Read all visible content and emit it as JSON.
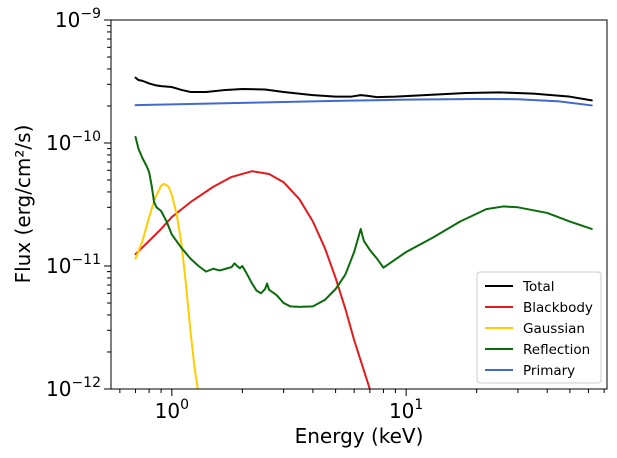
{
  "chart_data": {
    "type": "line",
    "xlabel": "Energy (keV)",
    "ylabel": "Flux (erg/cm²/s)",
    "xscale": "log",
    "yscale": "log",
    "xlim": [
      0.55,
      72
    ],
    "ylim": [
      1e-12,
      1e-09
    ],
    "grid": false,
    "legend_position": "lower-right",
    "x_ticks": [
      {
        "value": 1,
        "base": "10",
        "exp": "0"
      },
      {
        "value": 10,
        "base": "10",
        "exp": "1"
      }
    ],
    "y_ticks": [
      {
        "value": 1e-12,
        "base": "10",
        "exp": "−12"
      },
      {
        "value": 1e-11,
        "base": "10",
        "exp": "−11"
      },
      {
        "value": 1e-10,
        "base": "10",
        "exp": "−10"
      },
      {
        "value": 1e-09,
        "base": "10",
        "exp": "−9"
      }
    ],
    "series": [
      {
        "name": "Total",
        "color": "#000000",
        "points": [
          [
            0.7,
            3.4e-10
          ],
          [
            0.72,
            3.25e-10
          ],
          [
            0.75,
            3.2e-10
          ],
          [
            0.8,
            3.05e-10
          ],
          [
            0.85,
            2.95e-10
          ],
          [
            0.9,
            2.9e-10
          ],
          [
            1.0,
            2.85e-10
          ],
          [
            1.1,
            2.7e-10
          ],
          [
            1.2,
            2.6e-10
          ],
          [
            1.4,
            2.6e-10
          ],
          [
            1.7,
            2.7e-10
          ],
          [
            2.0,
            2.75e-10
          ],
          [
            2.5,
            2.72e-10
          ],
          [
            3.0,
            2.6e-10
          ],
          [
            4.0,
            2.45e-10
          ],
          [
            5.0,
            2.38e-10
          ],
          [
            5.8,
            2.38e-10
          ],
          [
            6.4,
            2.45e-10
          ],
          [
            6.8,
            2.42e-10
          ],
          [
            7.5,
            2.36e-10
          ],
          [
            9,
            2.38e-10
          ],
          [
            12,
            2.45e-10
          ],
          [
            18,
            2.55e-10
          ],
          [
            25,
            2.58e-10
          ],
          [
            35,
            2.52e-10
          ],
          [
            50,
            2.38e-10
          ],
          [
            62,
            2.22e-10
          ]
        ]
      },
      {
        "name": "Blackbody",
        "color": "#e31a1c",
        "points": [
          [
            0.7,
            1.25e-11
          ],
          [
            0.8,
            1.6e-11
          ],
          [
            0.9,
            2e-11
          ],
          [
            1.0,
            2.5e-11
          ],
          [
            1.2,
            3.3e-11
          ],
          [
            1.5,
            4.4e-11
          ],
          [
            1.8,
            5.3e-11
          ],
          [
            2.2,
            5.9e-11
          ],
          [
            2.6,
            5.6e-11
          ],
          [
            3.0,
            4.8e-11
          ],
          [
            3.5,
            3.5e-11
          ],
          [
            4.0,
            2.3e-11
          ],
          [
            4.5,
            1.4e-11
          ],
          [
            5.0,
            8e-12
          ],
          [
            5.5,
            4.5e-12
          ],
          [
            6.0,
            2.5e-12
          ],
          [
            6.5,
            1.55e-12
          ],
          [
            7.0,
            1e-12
          ]
        ]
      },
      {
        "name": "Gaussian",
        "color": "#ffcc00",
        "points": [
          [
            0.7,
            1.15e-11
          ],
          [
            0.75,
            1.6e-11
          ],
          [
            0.8,
            2.5e-11
          ],
          [
            0.85,
            3.6e-11
          ],
          [
            0.9,
            4.5e-11
          ],
          [
            0.93,
            4.65e-11
          ],
          [
            0.97,
            4.4e-11
          ],
          [
            1.0,
            3.8e-11
          ],
          [
            1.05,
            2.6e-11
          ],
          [
            1.1,
            1.5e-11
          ],
          [
            1.15,
            7e-12
          ],
          [
            1.2,
            3e-12
          ],
          [
            1.25,
            1.5e-12
          ],
          [
            1.29,
            1e-12
          ]
        ]
      },
      {
        "name": "Reflection",
        "color": "#0a6b0a",
        "points": [
          [
            0.7,
            1.12e-10
          ],
          [
            0.72,
            9e-11
          ],
          [
            0.75,
            7.5e-11
          ],
          [
            0.78,
            6.5e-11
          ],
          [
            0.8,
            5.8e-11
          ],
          [
            0.82,
            4.5e-11
          ],
          [
            0.84,
            3.3e-11
          ],
          [
            0.86,
            3e-11
          ],
          [
            0.9,
            2.8e-11
          ],
          [
            0.95,
            2.3e-11
          ],
          [
            1.0,
            1.8e-11
          ],
          [
            1.1,
            1.4e-11
          ],
          [
            1.2,
            1.15e-11
          ],
          [
            1.3,
            1e-11
          ],
          [
            1.4,
            9e-12
          ],
          [
            1.5,
            9.5e-12
          ],
          [
            1.6,
            9.2e-12
          ],
          [
            1.7,
            9.5e-12
          ],
          [
            1.8,
            9.8e-12
          ],
          [
            1.85,
            1.05e-11
          ],
          [
            1.9,
            1e-11
          ],
          [
            1.95,
            9.6e-12
          ],
          [
            2.0,
            1e-11
          ],
          [
            2.1,
            8.5e-12
          ],
          [
            2.2,
            7.2e-12
          ],
          [
            2.3,
            6.3e-12
          ],
          [
            2.4,
            6e-12
          ],
          [
            2.5,
            6.5e-12
          ],
          [
            2.55,
            7.2e-12
          ],
          [
            2.6,
            6.4e-12
          ],
          [
            2.8,
            5.8e-12
          ],
          [
            3.0,
            5e-12
          ],
          [
            3.2,
            4.7e-12
          ],
          [
            3.5,
            4.65e-12
          ],
          [
            4.0,
            4.7e-12
          ],
          [
            4.5,
            5.3e-12
          ],
          [
            5.0,
            6.5e-12
          ],
          [
            5.5,
            8.5e-12
          ],
          [
            6.0,
            1.3e-11
          ],
          [
            6.3,
            1.8e-11
          ],
          [
            6.4,
            2e-11
          ],
          [
            6.6,
            1.6e-11
          ],
          [
            7.0,
            1.35e-11
          ],
          [
            7.5,
            1.15e-11
          ],
          [
            8.0,
            9.7e-12
          ],
          [
            8.5,
            1.05e-11
          ],
          [
            10,
            1.3e-11
          ],
          [
            13,
            1.7e-11
          ],
          [
            17,
            2.3e-11
          ],
          [
            22,
            2.9e-11
          ],
          [
            26,
            3.05e-11
          ],
          [
            30,
            3e-11
          ],
          [
            40,
            2.7e-11
          ],
          [
            50,
            2.3e-11
          ],
          [
            62,
            2e-11
          ]
        ]
      },
      {
        "name": "Primary",
        "color": "#4169cf",
        "points": [
          [
            0.7,
            2.03e-10
          ],
          [
            1,
            2.06e-10
          ],
          [
            2,
            2.12e-10
          ],
          [
            5,
            2.2e-10
          ],
          [
            10,
            2.25e-10
          ],
          [
            20,
            2.28e-10
          ],
          [
            30,
            2.27e-10
          ],
          [
            45,
            2.18e-10
          ],
          [
            62,
            2.02e-10
          ]
        ]
      }
    ]
  }
}
